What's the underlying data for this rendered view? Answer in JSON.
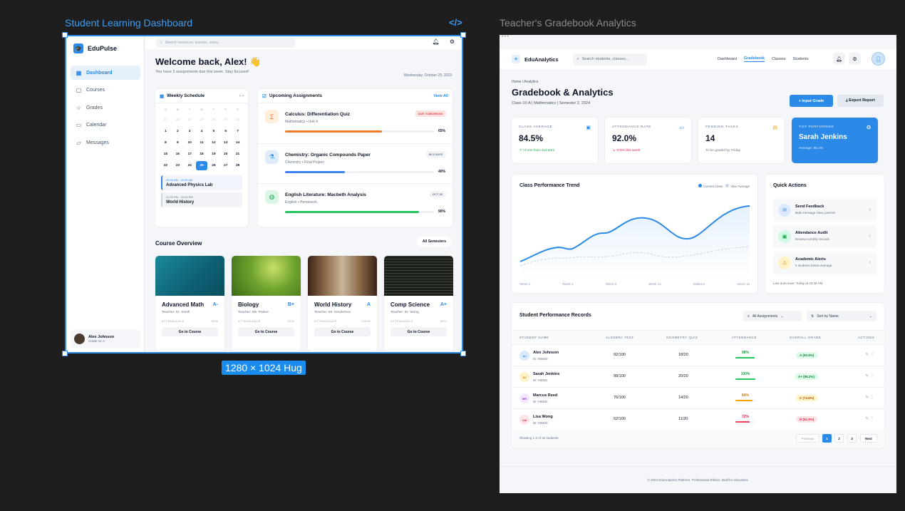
{
  "canvas": {
    "frame1_title": "Student Learning Dashboard",
    "frame2_title": "Teacher's Gradebook Analytics",
    "size_badge": "1280 × 1024 Hug",
    "code_icon": "</>"
  },
  "student": {
    "app_name": "EduPulse",
    "search_placeholder": "Search resources, lessons, notes...",
    "nav": [
      {
        "label": "Dashboard",
        "icon": "▦",
        "active": true
      },
      {
        "label": "Courses",
        "icon": "▢"
      },
      {
        "label": "Grades",
        "icon": "☆"
      },
      {
        "label": "Calendar",
        "icon": "▭"
      },
      {
        "label": "Messages",
        "icon": "▱"
      }
    ],
    "user": {
      "name": "Alex Johnson",
      "grade": "Grade 11-A"
    },
    "welcome": "Welcome back, Alex! 👋",
    "subtitle": "You have 3 assignments due this week. Stay focused!",
    "date": "Wednesday, October 25, 2023",
    "schedule": {
      "title": "Weekly Schedule",
      "day_headers": [
        "S",
        "M",
        "T",
        "W",
        "T",
        "F",
        "S"
      ],
      "days": [
        "24",
        "25",
        "26",
        "27",
        "28",
        "29",
        "30",
        "1",
        "2",
        "3",
        "4",
        "5",
        "6",
        "7",
        "8",
        "9",
        "10",
        "11",
        "12",
        "13",
        "14",
        "15",
        "16",
        "17",
        "18",
        "19",
        "20",
        "21",
        "22",
        "23",
        "24",
        "25",
        "26",
        "27",
        "28"
      ],
      "selected_day": "25",
      "events": [
        {
          "time": "09:00 AM - 10:30 AM",
          "name": "Advanced Physics Lab"
        },
        {
          "time": "01:00 PM - 02:00 PM",
          "name": "World History"
        }
      ]
    },
    "assignments": {
      "title": "Upcoming Assignments",
      "view_all": "View All",
      "items": [
        {
          "title": "Calculus: Differentiation Quiz",
          "sub": "Mathematics • Unit 4",
          "badge": "DUE TOMORROW",
          "progress": "65%",
          "icon": "Σ"
        },
        {
          "title": "Chemistry: Organic Compounds Paper",
          "sub": "Chemistry • Final Project",
          "badge": "IN 3 DAYS",
          "progress": "40%",
          "icon": "⚗"
        },
        {
          "title": "English Literature: Macbeth Analysis",
          "sub": "English • Homework",
          "badge": "OCT 30",
          "progress": "90%",
          "icon": "◍"
        }
      ]
    },
    "course_overview": {
      "title": "Course Overview",
      "filter": "All Semesters",
      "attendance_label": "ATTENDANCE",
      "button": "Go to Course",
      "courses": [
        {
          "name": "Advanced Math",
          "grade": "A-",
          "teacher": "Teacher: Dr. Smith",
          "attendance": "98%"
        },
        {
          "name": "Biology",
          "grade": "B+",
          "teacher": "Teacher: Ms. Parker",
          "attendance": "92%"
        },
        {
          "name": "World History",
          "grade": "A",
          "teacher": "Teacher: Mr. Henderson",
          "attendance": "100%"
        },
        {
          "name": "Comp Science",
          "grade": "A+",
          "teacher": "Teacher: Dr. Wong",
          "attendance": "96%"
        }
      ]
    }
  },
  "teacher": {
    "app_name": "EduAnalytics",
    "search_placeholder": "Search students, classes...",
    "nav": [
      "Dashboard",
      "Gradebook",
      "Classes",
      "Students"
    ],
    "active_nav": "Gradebook",
    "breadcrumb": "Home / Analytics",
    "title": "Gradebook & Analytics",
    "subtitle": "Class 10-A | Mathematics | Semester 2, 2024",
    "input_grade": "+ Input Grade",
    "export_report": "⤓ Export Report",
    "stats": [
      {
        "label": "CLASS AVERAGE",
        "value": "84.5%",
        "note": "↗ +2.1% from mid-term"
      },
      {
        "label": "ATTENDANCE RATE",
        "value": "92.0%",
        "note": "↘ -0.5% this week"
      },
      {
        "label": "PENDING TASKS",
        "value": "14",
        "note": "To be graded by Friday"
      },
      {
        "label": "TOP PERFORMER",
        "value": "Sarah Jenkins",
        "note": "Average: 98.2%"
      }
    ],
    "chart_title": "Class Performance Trend",
    "legend": [
      "Current Class",
      "Year Average"
    ],
    "quick_actions": {
      "title": "Quick Actions",
      "items": [
        {
          "name": "Send Feedback",
          "sub": "Bulk message class parents"
        },
        {
          "name": "Attendance Audit",
          "sub": "Review monthly records"
        },
        {
          "name": "Academic Alerts",
          "sub": "5 students below average"
        }
      ],
      "footer": "Last auto-save: Today at 10:45 AM"
    },
    "table": {
      "title": "Student Performance Records",
      "filter": "All Assignments",
      "sort": "Sort by Name",
      "headers": [
        "STUDENT NAME",
        "ALGEBRA TEST",
        "GEOMETRY QUIZ",
        "ATTENDANCE",
        "OVERALL GRADE",
        "ACTIONS"
      ],
      "rows": [
        {
          "initials": "AJ",
          "name": "Alex Johnson",
          "id": "ID: #45920",
          "algebra": "92/100",
          "geometry": "18/20",
          "attendance": "98%",
          "grade": "A (93.4%)"
        },
        {
          "initials": "SJ",
          "name": "Sarah Jenkins",
          "id": "ID: #45921",
          "algebra": "98/100",
          "geometry": "20/20",
          "attendance": "100%",
          "grade": "A+ (98.2%)"
        },
        {
          "initials": "MR",
          "name": "Marcus Reed",
          "id": "ID: #45922",
          "algebra": "76/100",
          "geometry": "14/20",
          "attendance": "84%",
          "grade": "C (74.8%)"
        },
        {
          "initials": "LW",
          "name": "Lisa Wong",
          "id": "ID: #45923",
          "algebra": "62/100",
          "geometry": "11/20",
          "attendance": "72%",
          "grade": "D (61.5%)"
        }
      ],
      "showing": "Showing 1-4 of 32 students",
      "pagination": [
        "Previous",
        "1",
        "2",
        "3",
        "Next"
      ]
    },
    "footer": "© 2024 EduAnalytics Platform. Professional Edition. Built for educators."
  },
  "chart_data": {
    "type": "line",
    "title": "Class Performance Trend",
    "categories": [
      "Week 1",
      "Week 4",
      "Week 8",
      "Week 12",
      "Midterm",
      "Week 16"
    ],
    "series": [
      {
        "name": "Current Class",
        "values": [
          20,
          38,
          55,
          78,
          50,
          92
        ]
      },
      {
        "name": "Year Average",
        "values": [
          15,
          22,
          26,
          32,
          24,
          38
        ]
      }
    ],
    "legend_position": "top-right",
    "grid": false
  }
}
